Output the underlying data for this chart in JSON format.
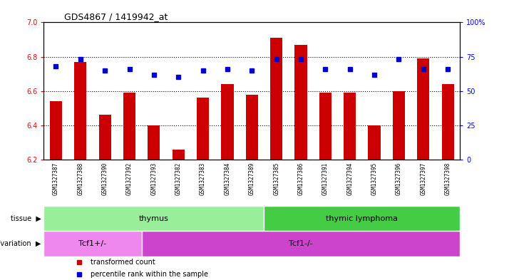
{
  "title": "GDS4867 / 1419942_at",
  "samples": [
    "GSM1327387",
    "GSM1327388",
    "GSM1327390",
    "GSM1327392",
    "GSM1327393",
    "GSM1327382",
    "GSM1327383",
    "GSM1327384",
    "GSM1327389",
    "GSM1327385",
    "GSM1327386",
    "GSM1327391",
    "GSM1327394",
    "GSM1327395",
    "GSM1327396",
    "GSM1327397",
    "GSM1327398"
  ],
  "red_values": [
    6.54,
    6.77,
    6.46,
    6.59,
    6.4,
    6.26,
    6.56,
    6.64,
    6.58,
    6.91,
    6.87,
    6.59,
    6.59,
    6.4,
    6.6,
    6.79,
    6.64
  ],
  "blue_values": [
    68,
    73,
    65,
    66,
    62,
    60,
    65,
    66,
    65,
    73,
    73,
    66,
    66,
    62,
    73,
    66,
    66
  ],
  "ylim_left": [
    6.2,
    7.0
  ],
  "ylim_right": [
    0,
    100
  ],
  "yticks_left": [
    6.2,
    6.4,
    6.6,
    6.8,
    7.0
  ],
  "yticks_right": [
    0,
    25,
    50,
    75,
    100
  ],
  "ytick_right_labels": [
    "0",
    "25",
    "50",
    "75",
    "100%"
  ],
  "grid_lines": [
    6.4,
    6.6,
    6.8
  ],
  "tissue_groups": [
    {
      "label": "thymus",
      "start": 0,
      "end": 9,
      "color": "#99EE99"
    },
    {
      "label": "thymic lymphoma",
      "start": 9,
      "end": 17,
      "color": "#44CC44"
    }
  ],
  "genotype_groups": [
    {
      "label": "Tcf1+/-",
      "start": 0,
      "end": 4,
      "color": "#EE88EE"
    },
    {
      "label": "Tcf1-/-",
      "start": 4,
      "end": 17,
      "color": "#CC44CC"
    }
  ],
  "bar_color": "#CC0000",
  "dot_color": "#0000CC",
  "xtick_bg_color": "#DDDDDD",
  "legend_items": [
    {
      "label": "transformed count",
      "color": "#CC0000",
      "marker": "s"
    },
    {
      "label": "percentile rank within the sample",
      "color": "#0000CC",
      "marker": "s"
    }
  ],
  "tissue_label": "tissue",
  "geno_label": "genotype/variation"
}
